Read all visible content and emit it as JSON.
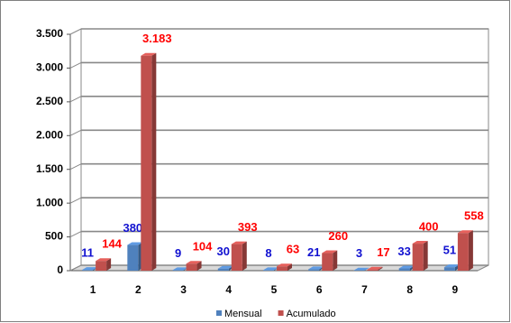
{
  "chart_data": {
    "type": "bar3d",
    "categories": [
      "1",
      "2",
      "3",
      "4",
      "5",
      "6",
      "7",
      "8",
      "9"
    ],
    "series": [
      {
        "name": "Mensual",
        "color": "#4f81bd",
        "label_color": "#1010d0",
        "values": [
          11,
          380,
          9,
          30,
          8,
          21,
          3,
          33,
          51
        ]
      },
      {
        "name": "Acumulado",
        "color": "#c0504d",
        "label_color": "#ff0000",
        "values": [
          144,
          3183,
          104,
          393,
          63,
          260,
          17,
          400,
          558
        ],
        "value_labels": [
          "144",
          "3.183",
          "104",
          "393",
          "63",
          "260",
          "17",
          "400",
          "558"
        ]
      }
    ],
    "ylim": [
      0,
      3500
    ],
    "yticks": [
      0,
      500,
      {
        "value": 1000,
        "label": "1.000"
      },
      {
        "value": 1500,
        "label": "1.500"
      },
      {
        "value": 2000,
        "label": "2.000"
      },
      {
        "value": 2500,
        "label": "2.500"
      },
      {
        "value": 3000,
        "label": "3.000"
      },
      {
        "value": 3500,
        "label": "3.500"
      }
    ],
    "grid": true,
    "legend": "bottom"
  }
}
